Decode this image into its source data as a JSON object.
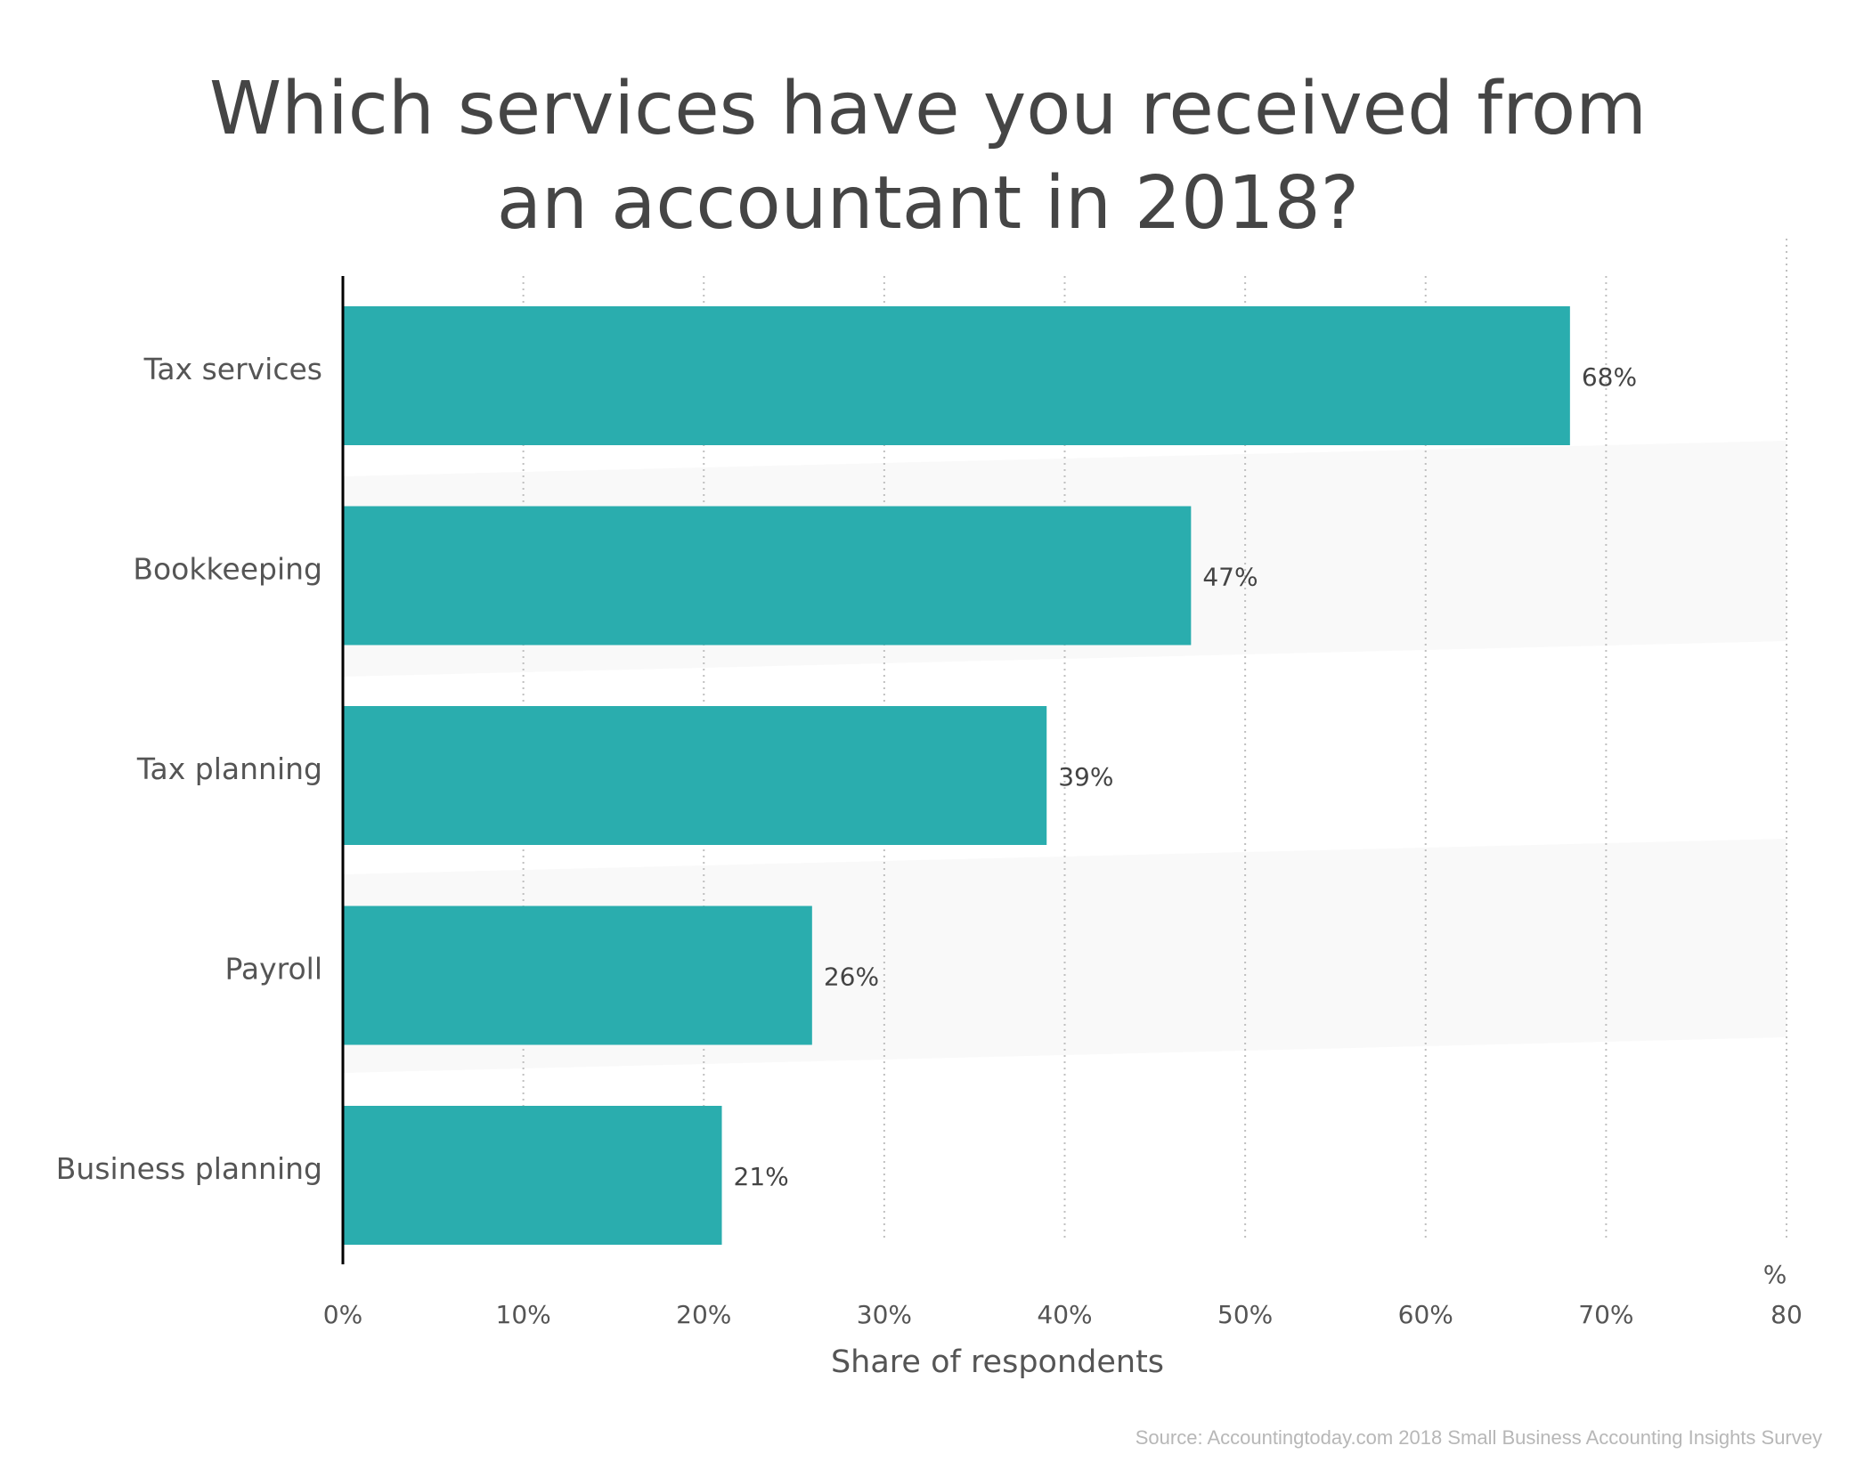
{
  "title_lines": [
    "Which services have you received from",
    "an accountant in 2018?"
  ],
  "source": "Source: Accountingtoday.com 2018 Small Business Accounting Insights Survey",
  "colors": {
    "bar": "#2aadae",
    "text": "#555555",
    "axis": "#000000",
    "grid": "#c0c0c0",
    "title": "#454545",
    "source": "#b7b7b7"
  },
  "chart_data": {
    "type": "bar",
    "orientation": "horizontal",
    "categories": [
      "Tax services",
      "Bookkeeping",
      "Tax planning",
      "Payroll",
      "Business planning"
    ],
    "values": [
      68,
      47,
      39,
      26,
      21
    ],
    "data_labels": [
      "68%",
      "47%",
      "39%",
      "26%",
      "21%"
    ],
    "xlabel": "Share of respondents",
    "xunit": "%",
    "xlim": [
      0,
      80
    ],
    "xticks": [
      0,
      10,
      20,
      30,
      40,
      50,
      60,
      70,
      80
    ],
    "xtick_labels": [
      "0%",
      "10%",
      "20%",
      "30%",
      "40%",
      "50%",
      "60%",
      "70%",
      "80"
    ],
    "grid": "vertical dotted"
  }
}
